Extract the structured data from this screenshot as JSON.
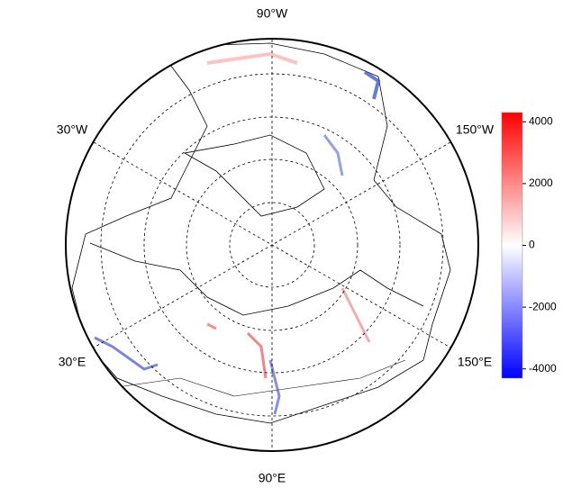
{
  "map": {
    "lon_labels": [
      "90°W",
      "30°W",
      "150°W",
      "30°E",
      "150°E",
      "90°E"
    ],
    "colorbar": {
      "lim": [
        -4300,
        4300
      ],
      "ticks": [
        4000,
        2000,
        0,
        -2000,
        -4000
      ],
      "colors": [
        "#0000ff",
        "#ffffff",
        "#ff0000"
      ]
    }
  }
}
